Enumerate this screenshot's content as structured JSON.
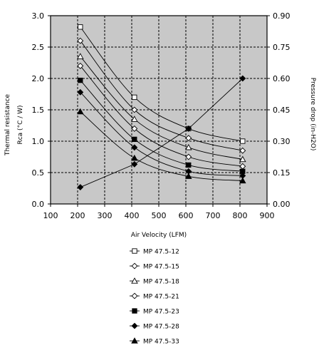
{
  "chart_data": {
    "type": "line",
    "xlabel": "Air Velocity (LFM)",
    "ylabel_lines": [
      "Thermal resistance",
      "Rca (°C / W)"
    ],
    "y2label": "Pressure drop (in-H2O)",
    "xlim": [
      100,
      900
    ],
    "ylim": [
      0,
      3.0
    ],
    "y2lim": [
      0,
      0.9
    ],
    "x_ticks": [
      100,
      200,
      300,
      400,
      500,
      600,
      700,
      800,
      900
    ],
    "y_ticks": [
      "0.0",
      "0.5",
      "1.0",
      "1.5",
      "2.0",
      "2.5",
      "3.0"
    ],
    "y2_ticks": [
      "0.00",
      "0.15",
      "0.30",
      "0.45",
      "0.60",
      "0.75",
      "0.90"
    ],
    "grid": true,
    "legend_position": "bottom",
    "x": [
      210,
      410,
      610,
      810
    ],
    "series": [
      {
        "name": "MP 47.5-12",
        "marker": "square-open",
        "values": [
          2.82,
          1.7,
          1.2,
          1.0
        ]
      },
      {
        "name": "MP 47.5-15",
        "marker": "diamond-open",
        "values": [
          2.6,
          1.5,
          1.05,
          0.85
        ]
      },
      {
        "name": "MP 47.5-18",
        "marker": "triangle-open",
        "values": [
          2.35,
          1.35,
          0.9,
          0.71
        ]
      },
      {
        "name": "MP 47.5-21",
        "marker": "diamond-open",
        "values": [
          2.2,
          1.2,
          0.75,
          0.6
        ]
      },
      {
        "name": "MP 47.5-23",
        "marker": "square-filled",
        "values": [
          1.97,
          1.03,
          0.62,
          0.52
        ]
      },
      {
        "name": "MP 47.5-28",
        "marker": "diamond-filled",
        "values": [
          1.78,
          0.9,
          0.52,
          0.45
        ]
      },
      {
        "name": "MP 47.5-33",
        "marker": "triangle-filled",
        "values": [
          1.47,
          0.73,
          0.44,
          0.37
        ]
      }
    ],
    "pressure_drop": {
      "marker": "diamond-filled",
      "axis": "right",
      "values": [
        0.08,
        0.19,
        0.36,
        0.6
      ]
    }
  }
}
